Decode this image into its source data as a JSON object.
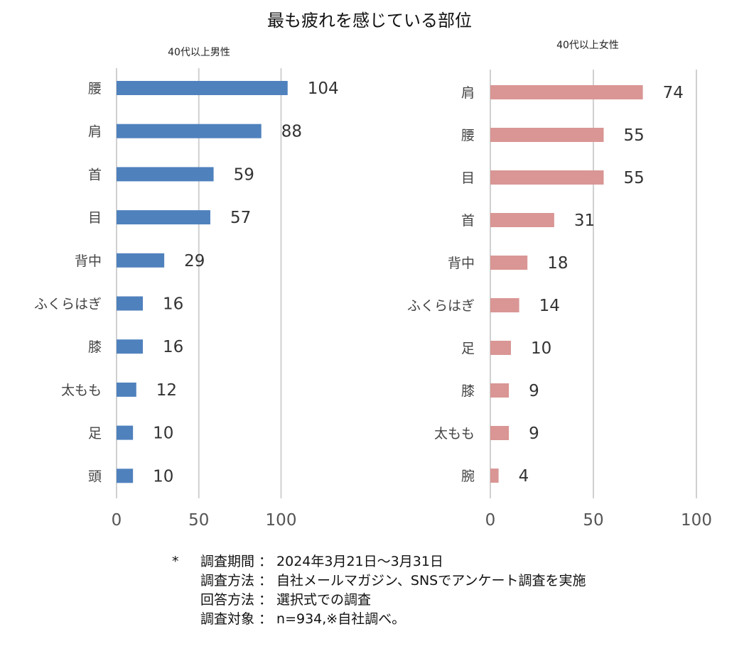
{
  "title": "最も疲れを感じている部位",
  "colors": {
    "male": "#4f81bd",
    "female": "#d99694"
  },
  "chart_data": [
    {
      "type": "bar",
      "orientation": "horizontal",
      "title": "40代以上男性",
      "categories": [
        "腰",
        "肩",
        "首",
        "目",
        "背中",
        "ふくらはぎ",
        "膝",
        "太もも",
        "足",
        "頭"
      ],
      "values": [
        104,
        88,
        59,
        57,
        29,
        16,
        16,
        12,
        10,
        10
      ],
      "xlim": [
        0,
        100
      ],
      "xticks": [
        "0",
        "50",
        "100"
      ],
      "grid": true
    },
    {
      "type": "bar",
      "orientation": "horizontal",
      "title": "40代以上女性",
      "categories": [
        "肩",
        "腰",
        "目",
        "首",
        "背中",
        "ふくらはぎ",
        "足",
        "膝",
        "太もも",
        "腕"
      ],
      "values": [
        74,
        55,
        55,
        31,
        18,
        14,
        10,
        9,
        9,
        4
      ],
      "xlim": [
        0,
        100
      ],
      "xticks": [
        "0",
        "50",
        "100"
      ],
      "grid": true
    }
  ],
  "footnote": {
    "marker": "*",
    "rows": [
      {
        "label": "調査期間",
        "sep": "：",
        "value": "2024年3月21日～3月31日"
      },
      {
        "label": "調査方法",
        "sep": "：",
        "value": "自社メールマガジン、SNSでアンケート調査を実施"
      },
      {
        "label": "回答方法",
        "sep": "：",
        "value": "選択式での調査"
      },
      {
        "label": "調査対象",
        "sep": "：",
        "value": "n=934,※自社調べ。"
      }
    ]
  }
}
